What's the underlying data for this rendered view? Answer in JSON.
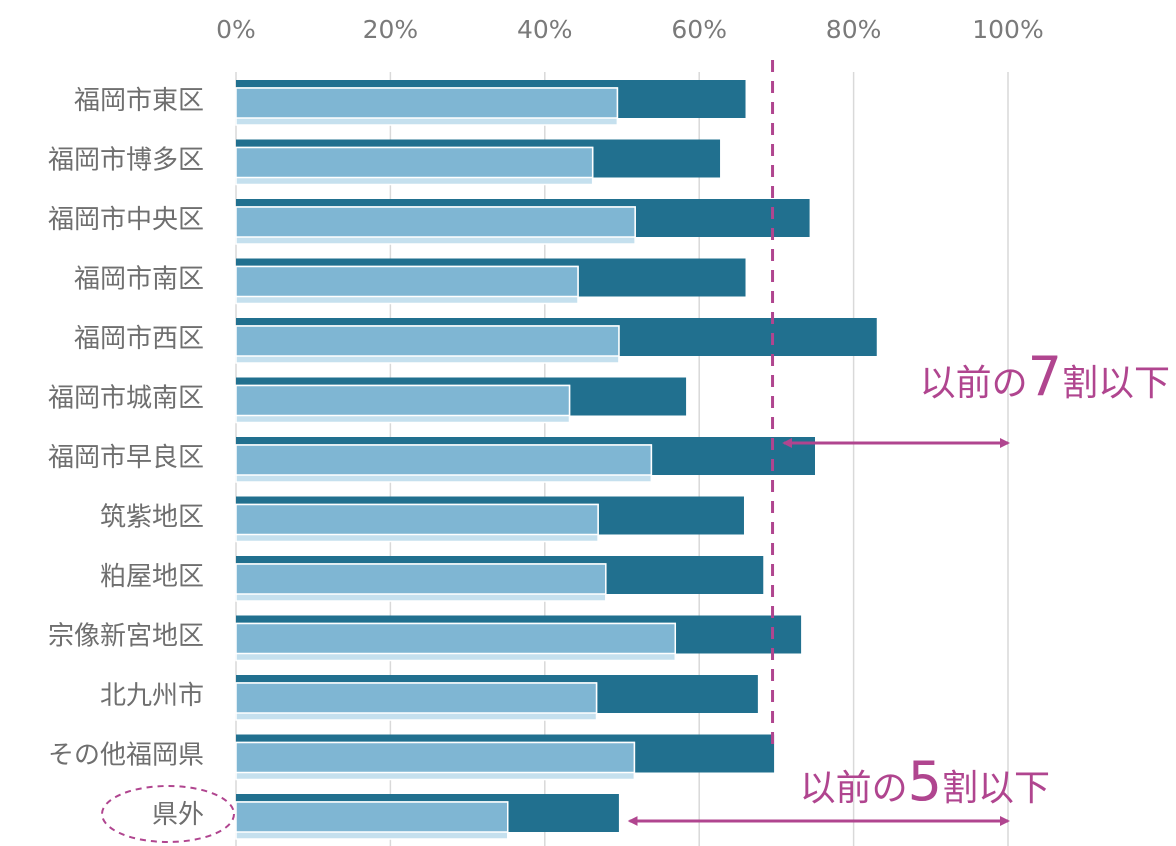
{
  "chart_data": {
    "type": "bar",
    "orientation": "horizontal",
    "categories": [
      "福岡市東区",
      "福岡市博多区",
      "福岡市中央区",
      "福岡市南区",
      "福岡市西区",
      "福岡市城南区",
      "福岡市早良区",
      "筑紫地区",
      "粕屋地区",
      "宗像新宮地区",
      "北九州市",
      "その他福岡県",
      "県外"
    ],
    "series": [
      {
        "values": [
          66,
          62.7,
          74.3,
          66,
          83,
          58.3,
          75,
          65.8,
          68.3,
          73.2,
          67.6,
          69.7,
          49.6
        ]
      },
      {
        "values": [
          49.4,
          46.2,
          51.7,
          44.3,
          49.6,
          43.2,
          53.8,
          46.9,
          47.9,
          56.9,
          46.7,
          51.6,
          35.2
        ]
      }
    ],
    "x_ticks": [
      "0%",
      "20%",
      "40%",
      "60%",
      "80%",
      "100%"
    ],
    "xlim": [
      0,
      100
    ],
    "x_axis_position": "top",
    "grid": true,
    "reference_line": {
      "value": 69.5,
      "style": "dashed",
      "color": "#b0458f"
    },
    "annotations": [
      {
        "prefix": "以前の",
        "number": "7",
        "suffix": "割以下",
        "arrow_from": 71,
        "arrow_to": 100
      },
      {
        "prefix": "以前の",
        "number": "5",
        "suffix": "割以下",
        "arrow_from": 51,
        "arrow_to": 100
      }
    ],
    "highlighted_category": "県外",
    "colors": {
      "series1": "#21708f",
      "series2": "#7fb6d3",
      "series2_base": "#c5e0ee",
      "accent": "#b0458f",
      "grid": "#d9d9d9"
    }
  }
}
